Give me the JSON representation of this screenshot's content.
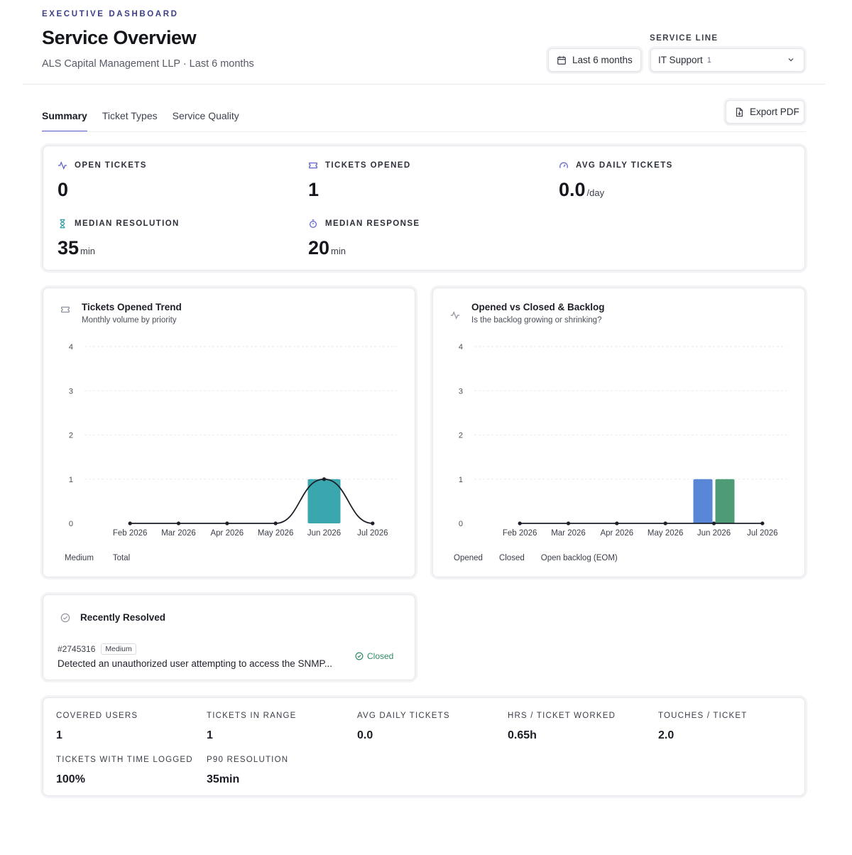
{
  "header": {
    "eyebrow": "EXECUTIVE DASHBOARD",
    "title": "Service Overview",
    "subtitle": "ALS Capital Management LLP · Last 6 months"
  },
  "controls": {
    "date_range": "Last 6 months",
    "service_line_label": "SERVICE LINE",
    "service_line_value": "IT Support",
    "service_line_count": "1",
    "export_label": "Export PDF"
  },
  "tabs": [
    {
      "label": "Summary",
      "active": true
    },
    {
      "label": "Ticket Types",
      "active": false
    },
    {
      "label": "Service Quality",
      "active": false
    }
  ],
  "kpis": {
    "open_tickets": {
      "label": "OPEN TICKETS",
      "value": "0",
      "unit": "",
      "icon": "activity-icon"
    },
    "tickets_opened": {
      "label": "TICKETS OPENED",
      "value": "1",
      "unit": "",
      "icon": "ticket-icon"
    },
    "avg_daily": {
      "label": "AVG DAILY TICKETS",
      "value": "0.0",
      "unit": "/day",
      "icon": "gauge-icon"
    },
    "median_resolution": {
      "label": "MEDIAN RESOLUTION",
      "value": "35",
      "unit": "min",
      "icon": "hourglass-icon"
    },
    "median_response": {
      "label": "MEDIAN RESPONSE",
      "value": "20",
      "unit": "min",
      "icon": "timer-icon"
    }
  },
  "charts": {
    "trend": {
      "title": "Tickets Opened Trend",
      "subtitle": "Monthly volume by priority",
      "legend": [
        "Medium",
        "Total"
      ]
    },
    "backlog": {
      "title": "Opened vs Closed & Backlog",
      "subtitle": "Is the backlog growing or shrinking?",
      "legend": [
        "Opened",
        "Closed",
        "Open backlog (EOM)"
      ]
    }
  },
  "chart_data": [
    {
      "type": "bar",
      "title": "Tickets Opened Trend",
      "subtitle": "Monthly volume by priority",
      "categories": [
        "Feb 2026",
        "Mar 2026",
        "Apr 2026",
        "May 2026",
        "Jun 2026",
        "Jul 2026"
      ],
      "series": [
        {
          "name": "Medium",
          "type": "bar",
          "color": "#3aa6ad",
          "values": [
            0,
            0,
            0,
            0,
            1,
            0
          ]
        },
        {
          "name": "Total",
          "type": "line",
          "color": "#1c1f27",
          "values": [
            0,
            0,
            0,
            0,
            1,
            0
          ]
        }
      ],
      "ylim": [
        0,
        4
      ],
      "yticks": [
        0,
        1,
        2,
        3,
        4
      ],
      "grid": true,
      "legend_position": "bottom"
    },
    {
      "type": "bar",
      "title": "Opened vs Closed & Backlog",
      "subtitle": "Is the backlog growing or shrinking?",
      "categories": [
        "Feb 2026",
        "Mar 2026",
        "Apr 2026",
        "May 2026",
        "Jun 2026",
        "Jul 2026"
      ],
      "series": [
        {
          "name": "Opened",
          "type": "bar",
          "color": "#5a86d8",
          "values": [
            0,
            0,
            0,
            0,
            1,
            0
          ]
        },
        {
          "name": "Closed",
          "type": "bar",
          "color": "#4e9b78",
          "values": [
            0,
            0,
            0,
            0,
            1,
            0
          ]
        },
        {
          "name": "Open backlog (EOM)",
          "type": "line",
          "color": "#1c1f27",
          "values": [
            0,
            0,
            0,
            0,
            0,
            0
          ]
        }
      ],
      "ylim": [
        0,
        4
      ],
      "yticks": [
        0,
        1,
        2,
        3,
        4
      ],
      "grid": true,
      "legend_position": "bottom"
    }
  ],
  "recent": {
    "title": "Recently Resolved",
    "ticket_id": "#2745316",
    "priority": "Medium",
    "description": "Detected an unauthorized user attempting to access the SNMP...",
    "status": "Closed"
  },
  "stats": {
    "covered_users": {
      "label": "COVERED USERS",
      "value": "1"
    },
    "tickets_in_range": {
      "label": "TICKETS IN RANGE",
      "value": "1"
    },
    "avg_daily": {
      "label": "AVG DAILY TICKETS",
      "value": "0.0"
    },
    "hrs_per_ticket": {
      "label": "HRS / TICKET WORKED",
      "value": "0.65h"
    },
    "touches": {
      "label": "TOUCHES / TICKET",
      "value": "2.0"
    },
    "time_logged": {
      "label": "TICKETS WITH TIME LOGGED",
      "value": "100%"
    },
    "p90": {
      "label": "P90 RESOLUTION",
      "value": "35min"
    }
  }
}
